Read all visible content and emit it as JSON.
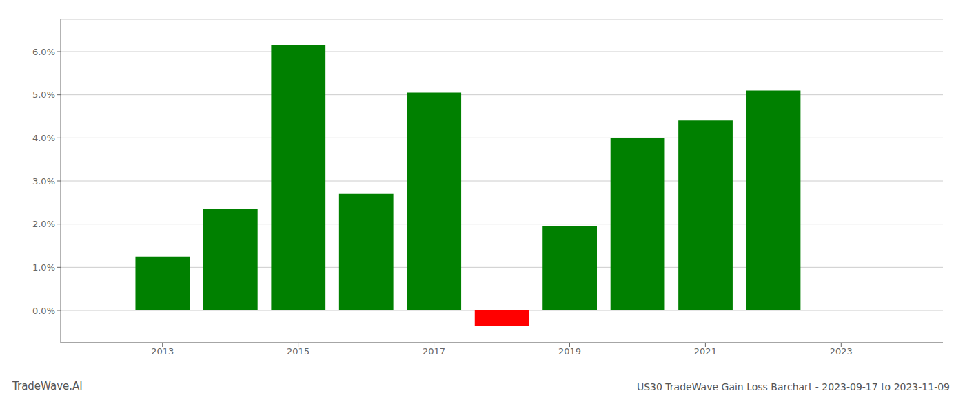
{
  "chart_data": {
    "type": "bar",
    "title": "US30 TradeWave Gain Loss Barchart - 2023-09-17 to 2023-11-09",
    "annotations": [
      "TradeWave.AI"
    ],
    "x": [
      2013,
      2014,
      2015,
      2016,
      2017,
      2018,
      2019,
      2020,
      2021,
      2022
    ],
    "values": [
      1.25,
      2.35,
      6.15,
      2.7,
      5.05,
      -0.35,
      1.95,
      4.0,
      4.4,
      5.1
    ],
    "colors": [
      "#008000",
      "#008000",
      "#008000",
      "#008000",
      "#008000",
      "#ff0000",
      "#008000",
      "#008000",
      "#008000",
      "#008000"
    ],
    "xlim": [
      2011.5,
      2024.5
    ],
    "xticks": [
      2013,
      2015,
      2017,
      2019,
      2021,
      2023
    ],
    "ylim": [
      -0.75,
      6.75
    ],
    "yticks": [
      {
        "value": 0.0,
        "label": "0.0%"
      },
      {
        "value": 1.0,
        "label": "1.0%"
      },
      {
        "value": 2.0,
        "label": "2.0%"
      },
      {
        "value": 3.0,
        "label": "3.0%"
      },
      {
        "value": 4.0,
        "label": "4.0%"
      },
      {
        "value": 5.0,
        "label": "5.0%"
      },
      {
        "value": 6.0,
        "label": "6.0%"
      }
    ],
    "grid": true
  }
}
